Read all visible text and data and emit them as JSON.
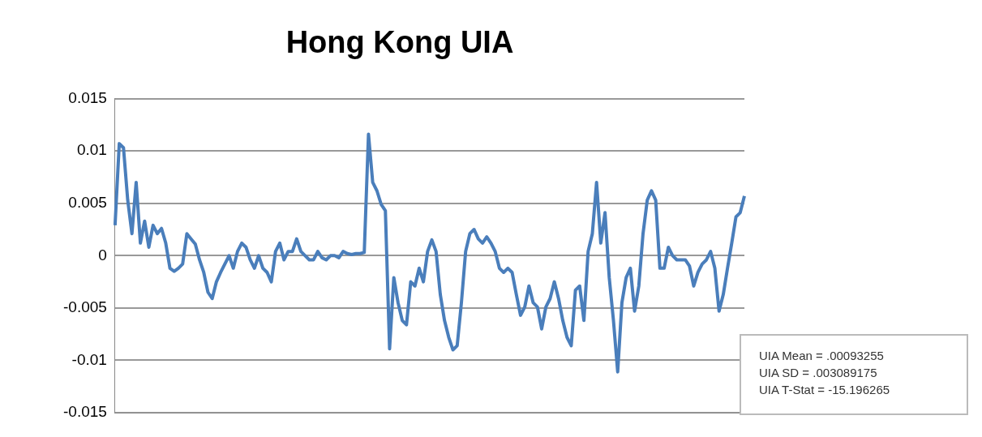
{
  "chart_data": {
    "type": "line",
    "title": "Hong Kong UIA",
    "categories": [
      null,
      null,
      null,
      null,
      null,
      null,
      null,
      null,
      null,
      null,
      null,
      null,
      null,
      null,
      null,
      null,
      null,
      null,
      null,
      null,
      null,
      null,
      null,
      null,
      null,
      null,
      null,
      null,
      null,
      null,
      null,
      null,
      null,
      null,
      null,
      null,
      null,
      null,
      null,
      null,
      null,
      null,
      null,
      null,
      null,
      null,
      null,
      null,
      null,
      null,
      null,
      null,
      null,
      null,
      null,
      null,
      null,
      null,
      null,
      null,
      null,
      null,
      null,
      null,
      null,
      null,
      null,
      null,
      null,
      null,
      null,
      null,
      null,
      null,
      null,
      null,
      null,
      null,
      null,
      null,
      null,
      null,
      null,
      null,
      null,
      null,
      null,
      null,
      null,
      null,
      null,
      null,
      null,
      null,
      null,
      null,
      null,
      null,
      null,
      null,
      null,
      null,
      null,
      null,
      null,
      null,
      null,
      null,
      null,
      null,
      null,
      null,
      null,
      null,
      null,
      null,
      null,
      null,
      null,
      null,
      null,
      null,
      null,
      null,
      null,
      null,
      null,
      null,
      null,
      null,
      null,
      null,
      null,
      null,
      null,
      null,
      null,
      null,
      null,
      null,
      null,
      null,
      null,
      null,
      null,
      null,
      null,
      null,
      null,
      null
    ],
    "series": [
      {
        "color": "#4a7ebb",
        "values": [
          0.0029,
          0.0107,
          0.0103,
          0.0053,
          0.0021,
          0.007,
          0.0012,
          0.0033,
          0.0008,
          0.0029,
          0.0021,
          0.0026,
          0.0012,
          -0.0012,
          -0.0015,
          -0.0012,
          -0.0008,
          0.0021,
          0.0016,
          0.0011,
          -0.0004,
          -0.0016,
          -0.0035,
          -0.0041,
          -0.0025,
          -0.0016,
          -0.0008,
          0,
          -0.0012,
          0.0004,
          0.0012,
          0.0008,
          -0.0004,
          -0.0012,
          0,
          -0.0012,
          -0.0016,
          -0.0025,
          0.0004,
          0.0012,
          -0.0004,
          0.0004,
          0.0004,
          0.0016,
          0.0004,
          0,
          -0.0004,
          -0.0004,
          0.0004,
          -0.0002,
          -0.0004,
          0,
          0,
          -0.0002,
          0.0004,
          0.0002,
          0.0001,
          0.0002,
          0.0002,
          0.0003,
          0.0116,
          0.007,
          0.0062,
          0.0049,
          0.0043,
          -0.0089,
          -0.0021,
          -0.0045,
          -0.0062,
          -0.0066,
          -0.0025,
          -0.0029,
          -0.0012,
          -0.0025,
          0.0004,
          0.0015,
          0.0004,
          -0.0037,
          -0.0062,
          -0.0078,
          -0.009,
          -0.0086,
          -0.0045,
          0.0004,
          0.0021,
          0.0025,
          0.0016,
          0.0012,
          0.0018,
          0.0012,
          0.0004,
          -0.0012,
          -0.0016,
          -0.0012,
          -0.0016,
          -0.0037,
          -0.0057,
          -0.0049,
          -0.0029,
          -0.0045,
          -0.0049,
          -0.007,
          -0.0049,
          -0.0041,
          -0.0025,
          -0.0041,
          -0.0062,
          -0.0078,
          -0.0086,
          -0.0033,
          -0.0029,
          -0.0062,
          0.0004,
          0.0021,
          0.007,
          0.0012,
          0.0041,
          -0.0021,
          -0.0062,
          -0.0111,
          -0.0045,
          -0.0021,
          -0.0012,
          -0.0053,
          -0.0029,
          0.0021,
          0.0053,
          0.0062,
          0.0053,
          -0.0012,
          -0.0012,
          0.0008,
          0,
          -0.0004,
          -0.0004,
          -0.0004,
          -0.001,
          -0.0029,
          -0.0016,
          -0.0008,
          -0.0004,
          0.0004,
          -0.0012,
          -0.0053,
          -0.0037,
          -0.0012,
          0.0012,
          0.0037,
          0.0041,
          0.0057
        ]
      }
    ],
    "ylim": [
      -0.015,
      0.015
    ],
    "yticks": [
      0.015,
      0.01,
      0.005,
      0,
      -0.005,
      -0.01,
      -0.015
    ],
    "grid": "y",
    "tick_labels": "y",
    "legend": false,
    "marker": "none",
    "line_style": "solid",
    "annotations": [
      "UIA Mean = .00093255",
      "UIA SD = .003089175",
      "UIA T-Stat = -15.196265"
    ]
  }
}
